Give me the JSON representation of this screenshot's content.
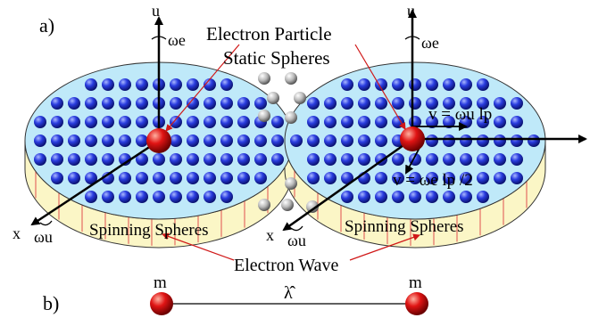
{
  "panel_a_label": "a)",
  "panel_b_label": "b)",
  "electron_particle_label": "Electron Particle",
  "static_spheres_label": "Static Spheres",
  "spinning_spheres_label": "Spinning Spheres",
  "electron_wave_label": "Electron Wave",
  "axis_u": "u",
  "axis_x": "x",
  "omega_e": "ωe",
  "omega_u": "ωu",
  "velocity_u_label": "v = ωu lp",
  "velocity_e_label": "v = ωe lp /2",
  "mass_label": "m",
  "wavelength_label": "λ̂",
  "colors": {
    "disk_top": "#bfe9f9",
    "disk_side": "#fbf6c6",
    "blue_sphere": "#1c2fd0",
    "red_sphere": "#e01010",
    "static_sphere": "#c8c8c8",
    "pointer": "#d01818"
  }
}
